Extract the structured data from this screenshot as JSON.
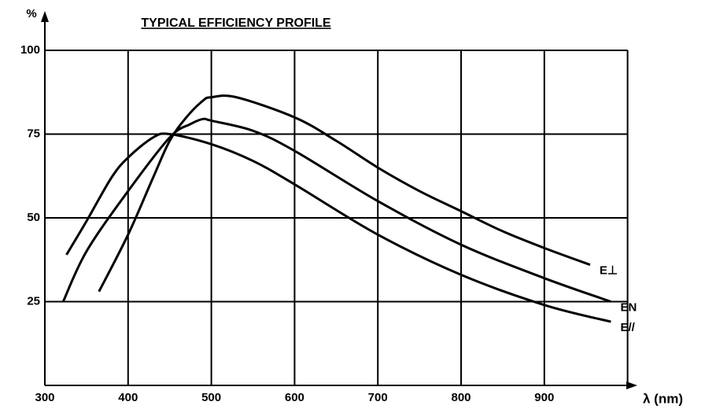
{
  "chart_data": {
    "type": "line",
    "title": "TYPICAL EFFICIENCY PROFILE",
    "x_label": "λ (nm)",
    "y_label": "%",
    "xlim": [
      300,
      1000
    ],
    "xticks": [
      300,
      400,
      500,
      600,
      700,
      800,
      900
    ],
    "ylim": [
      0,
      100
    ],
    "yticks": [
      25,
      50,
      75,
      100
    ],
    "grid": true,
    "series": [
      {
        "name": "E⊥",
        "color": "#000000",
        "x": [
          365,
          400,
          430,
          450,
          470,
          490,
          500,
          530,
          600,
          650,
          700,
          750,
          800,
          850,
          900,
          955
        ],
        "values": [
          28,
          45,
          62,
          73,
          80,
          85,
          86,
          86,
          80,
          73,
          65,
          58,
          52,
          46,
          41,
          36
        ]
      },
      {
        "name": "EN",
        "color": "#000000",
        "x": [
          322,
          350,
          400,
          450,
          475,
          490,
          500,
          550,
          600,
          700,
          800,
          900,
          980
        ],
        "values": [
          25,
          40,
          58,
          74,
          78,
          79.5,
          79,
          76,
          70,
          55,
          42,
          32,
          25
        ]
      },
      {
        "name": "E//",
        "color": "#000000",
        "x": [
          326,
          350,
          380,
          400,
          430,
          450,
          500,
          550,
          600,
          700,
          800,
          900,
          980
        ],
        "values": [
          39,
          49,
          62,
          68,
          74,
          75,
          72,
          67,
          60,
          45,
          33,
          24,
          19
        ]
      }
    ]
  }
}
